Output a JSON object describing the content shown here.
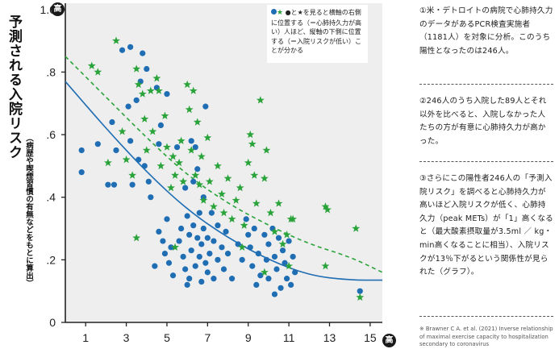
{
  "chart_data": {
    "type": "scatter",
    "title": "",
    "xlabel": "高",
    "ylabel": "予測される入院リスク",
    "ylabel_note": "（病歴や喫煙習慣の有無などをもとに算出）",
    "ylabel_badge": "高",
    "xlim": [
      0,
      15.6
    ],
    "ylim": [
      0,
      1.02
    ],
    "x_ticks": [
      1,
      3,
      5,
      7,
      9,
      11,
      13,
      15
    ],
    "x_tick_labels": [
      "1",
      "3",
      "5",
      "7",
      "9",
      "11",
      "13",
      "15"
    ],
    "y_ticks": [
      0,
      0.2,
      0.4,
      0.6,
      0.8,
      1.0
    ],
    "y_tick_labels": [
      "0",
      ".2",
      ".4",
      ".6",
      ".8",
      "1.0"
    ],
    "grid": false,
    "legend_note": "●と★を見ると横軸の右側に位置する（＝心肺持久力が高い）人ほど、縦軸の下側に位置する（＝入院リスクが低い）ことが分かる",
    "legend_placement": "top-right",
    "colors": {
      "hospitalized": "#1f6db3",
      "not_hospitalized": "#2aa33a",
      "axis": "#222222"
    },
    "series": [
      {
        "marker": "circle",
        "color": "#1f6db3",
        "points": [
          [
            0.8,
            0.55
          ],
          [
            0.8,
            0.48
          ],
          [
            1.6,
            0.57
          ],
          [
            2.1,
            0.44
          ],
          [
            2.3,
            0.64
          ],
          [
            2.4,
            0.44
          ],
          [
            2.5,
            0.55
          ],
          [
            2.8,
            0.87
          ],
          [
            3.1,
            0.69
          ],
          [
            3.2,
            0.88
          ],
          [
            3.2,
            0.58
          ],
          [
            3.3,
            0.44
          ],
          [
            3.5,
            0.71
          ],
          [
            3.7,
            0.77
          ],
          [
            3.6,
            0.52
          ],
          [
            3.8,
            0.86
          ],
          [
            3.9,
            0.5
          ],
          [
            4.0,
            0.81
          ],
          [
            4.1,
            0.45
          ],
          [
            4.2,
            0.4
          ],
          [
            4.5,
            0.75
          ],
          [
            4.6,
            0.57
          ],
          [
            4.7,
            0.63
          ],
          [
            4.6,
            0.29
          ],
          [
            4.8,
            0.26
          ],
          [
            4.9,
            0.22
          ],
          [
            5.0,
            0.73
          ],
          [
            5.0,
            0.33
          ],
          [
            5.1,
            0.19
          ],
          [
            5.2,
            0.24
          ],
          [
            4.4,
            0.18
          ],
          [
            5.3,
            0.15
          ],
          [
            5.5,
            0.56
          ],
          [
            5.6,
            0.26
          ],
          [
            5.7,
            0.3
          ],
          [
            5.8,
            0.21
          ],
          [
            5.9,
            0.43
          ],
          [
            5.9,
            0.17
          ],
          [
            6.0,
            0.12
          ],
          [
            6.0,
            0.34
          ],
          [
            6.1,
            0.28
          ],
          [
            6.1,
            0.14
          ],
          [
            6.2,
            0.58
          ],
          [
            6.2,
            0.23
          ],
          [
            6.3,
            0.45
          ],
          [
            6.3,
            0.31
          ],
          [
            6.4,
            0.18
          ],
          [
            6.4,
            0.56
          ],
          [
            6.5,
            0.27
          ],
          [
            6.5,
            0.49
          ],
          [
            6.6,
            0.21
          ],
          [
            6.6,
            0.35
          ],
          [
            6.7,
            0.13
          ],
          [
            6.7,
            0.25
          ],
          [
            6.8,
            0.4
          ],
          [
            6.8,
            0.3
          ],
          [
            6.9,
            0.69
          ],
          [
            6.9,
            0.19
          ],
          [
            7.0,
            0.16
          ],
          [
            7.0,
            0.27
          ],
          [
            7.1,
            0.22
          ],
          [
            7.2,
            0.35
          ],
          [
            7.3,
            0.14
          ],
          [
            7.3,
            0.26
          ],
          [
            7.5,
            0.2
          ],
          [
            7.5,
            0.31
          ],
          [
            7.7,
            0.24
          ],
          [
            7.8,
            0.17
          ],
          [
            7.9,
            0.29
          ],
          [
            8.0,
            0.22
          ],
          [
            8.2,
            0.14
          ],
          [
            8.5,
            0.25
          ],
          [
            8.7,
            0.2
          ],
          [
            8.9,
            0.33
          ],
          [
            9.0,
            0.28
          ],
          [
            9.1,
            0.24
          ],
          [
            9.2,
            0.18
          ],
          [
            9.3,
            0.3
          ],
          [
            9.5,
            0.22
          ],
          [
            9.6,
            0.15
          ],
          [
            9.8,
            0.28
          ],
          [
            9.9,
            0.2
          ],
          [
            10.0,
            0.14
          ],
          [
            10.0,
            0.25
          ],
          [
            10.2,
            0.3
          ],
          [
            10.3,
            0.21
          ],
          [
            10.4,
            0.17
          ],
          [
            10.5,
            0.27
          ],
          [
            10.6,
            0.11
          ],
          [
            10.7,
            0.23
          ],
          [
            10.8,
            0.19
          ],
          [
            10.9,
            0.14
          ],
          [
            11.0,
            0.26
          ],
          [
            11.1,
            0.12
          ],
          [
            11.2,
            0.21
          ],
          [
            11.3,
            0.16
          ],
          [
            14.5,
            0.1
          ],
          [
            9.4,
            0.12
          ],
          [
            10.3,
            0.09
          ]
        ]
      },
      {
        "marker": "star",
        "color": "#2aa33a",
        "points": [
          [
            1.3,
            0.82
          ],
          [
            1.6,
            0.8
          ],
          [
            2.1,
            0.51
          ],
          [
            2.5,
            0.9
          ],
          [
            2.8,
            0.61
          ],
          [
            3.0,
            0.52
          ],
          [
            3.3,
            0.47
          ],
          [
            3.5,
            0.81
          ],
          [
            3.6,
            0.76
          ],
          [
            3.8,
            0.73
          ],
          [
            3.9,
            0.65
          ],
          [
            4.0,
            0.55
          ],
          [
            4.2,
            0.74
          ],
          [
            4.3,
            0.61
          ],
          [
            4.5,
            0.78
          ],
          [
            4.6,
            0.74
          ],
          [
            4.7,
            0.5
          ],
          [
            4.9,
            0.66
          ],
          [
            5.0,
            0.56
          ],
          [
            5.2,
            0.43
          ],
          [
            5.3,
            0.53
          ],
          [
            5.4,
            0.47
          ],
          [
            5.6,
            0.51
          ],
          [
            5.7,
            0.58
          ],
          [
            5.8,
            0.45
          ],
          [
            6.0,
            0.76
          ],
          [
            6.1,
            0.68
          ],
          [
            6.2,
            0.55
          ],
          [
            6.3,
            0.74
          ],
          [
            6.4,
            0.47
          ],
          [
            6.5,
            0.64
          ],
          [
            6.6,
            0.44
          ],
          [
            6.7,
            0.53
          ],
          [
            6.8,
            0.39
          ],
          [
            7.0,
            0.59
          ],
          [
            7.1,
            0.45
          ],
          [
            7.3,
            0.37
          ],
          [
            7.5,
            0.5
          ],
          [
            7.7,
            0.41
          ],
          [
            7.8,
            0.35
          ],
          [
            8.0,
            0.46
          ],
          [
            8.2,
            0.33
          ],
          [
            8.4,
            0.39
          ],
          [
            8.6,
            0.43
          ],
          [
            8.8,
            0.31
          ],
          [
            9.0,
            0.51
          ],
          [
            9.1,
            0.6
          ],
          [
            9.2,
            0.57
          ],
          [
            9.3,
            0.47
          ],
          [
            9.4,
            0.38
          ],
          [
            9.6,
            0.71
          ],
          [
            9.8,
            0.46
          ],
          [
            9.9,
            0.55
          ],
          [
            10.1,
            0.35
          ],
          [
            10.3,
            0.29
          ],
          [
            10.5,
            0.38
          ],
          [
            10.7,
            0.25
          ],
          [
            10.9,
            0.28
          ],
          [
            11.0,
            0.18
          ],
          [
            11.2,
            0.33
          ],
          [
            12.8,
            0.37
          ],
          [
            12.9,
            0.36
          ],
          [
            14.3,
            0.3
          ],
          [
            14.5,
            0.08
          ],
          [
            3.5,
            0.27
          ],
          [
            5.4,
            0.24
          ],
          [
            8.7,
            0.24
          ],
          [
            9.8,
            0.16
          ],
          [
            12.8,
            0.18
          ],
          [
            11.1,
            0.33
          ]
        ]
      }
    ],
    "trend_lines": [
      {
        "style": "solid",
        "color": "#1f6db3",
        "points": [
          [
            0,
            0.77
          ],
          [
            2,
            0.62
          ],
          [
            4,
            0.48
          ],
          [
            6,
            0.36
          ],
          [
            8,
            0.27
          ],
          [
            10,
            0.2
          ],
          [
            12,
            0.15
          ],
          [
            14,
            0.135
          ],
          [
            15.6,
            0.135
          ]
        ]
      },
      {
        "style": "dashed",
        "color": "#2aa33a",
        "points": [
          [
            0,
            0.85
          ],
          [
            2,
            0.72
          ],
          [
            4,
            0.59
          ],
          [
            6,
            0.47
          ],
          [
            8,
            0.38
          ],
          [
            10,
            0.31
          ],
          [
            12,
            0.25
          ],
          [
            14,
            0.21
          ],
          [
            15.6,
            0.16
          ]
        ]
      }
    ]
  },
  "notes": [
    "①米・デトロイトの病院で心肺持久力のデータがあるPCR検査実施者（1181人）を対象に分析。このうち陽性となったのは246人。",
    "②246人のうち入院した89人とそれ以外を比べると、入院しなかった人たちの方が有意に心肺持久力が高かった。",
    "③さらにこの陽性者246人の「予測入院リスク」を調べると心肺持久力が高いほど入院リスクが低く、心肺持久力（peak METs）が「1」高くなると（最大酸素摂取量が3.5ml ／ kg・min高くなることに相当）、入院リスクが13％下がるという関係性が見られた（グラフ）。"
  ],
  "citation": "※ Brawner C A. et al. (2021) Inverse relationship of maximal exercise capacity to hospitalization secondary to coronavirus"
}
